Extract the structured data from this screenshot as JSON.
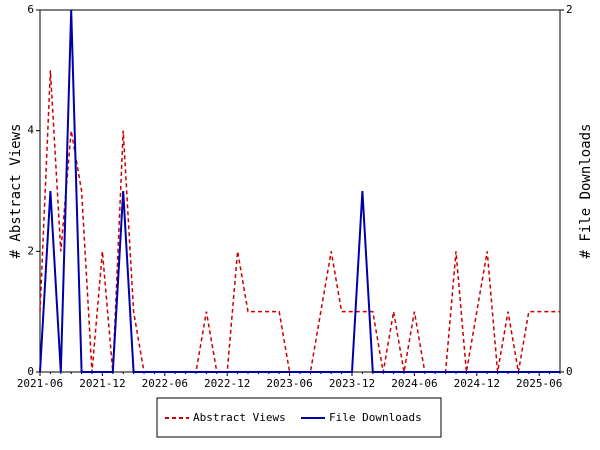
{
  "chart_data": {
    "type": "line",
    "categories": [
      "2021-06",
      null,
      null,
      null,
      null,
      null,
      "2021-12",
      null,
      null,
      null,
      null,
      null,
      "2022-06",
      null,
      null,
      null,
      null,
      null,
      "2022-12",
      null,
      null,
      null,
      null,
      null,
      "2023-06",
      null,
      null,
      null,
      null,
      null,
      "2023-12",
      null,
      null,
      null,
      null,
      null,
      "2024-06",
      null,
      null,
      null,
      null,
      null,
      "2024-12",
      null,
      null,
      null,
      null,
      null,
      "2025-06",
      null,
      null
    ],
    "series": [
      {
        "name": "Abstract Views",
        "color": "#cc0000",
        "dash": true,
        "values": [
          1,
          5,
          2,
          4,
          3,
          0,
          2,
          0,
          4,
          1,
          0,
          0,
          0,
          0,
          0,
          0,
          1,
          0,
          0,
          2,
          1,
          1,
          1,
          1,
          0,
          0,
          0,
          1,
          2,
          1,
          1,
          1,
          1,
          0,
          1,
          0,
          1,
          0,
          0,
          0,
          2,
          0,
          1,
          2,
          0,
          1,
          0,
          1,
          1,
          1,
          1
        ]
      },
      {
        "name": "File Downloads",
        "color": "#0000aa",
        "dash": false,
        "axis": "y2",
        "values": [
          0,
          1,
          0,
          2,
          0,
          0,
          0,
          0,
          1,
          0,
          0,
          0,
          0,
          0,
          0,
          0,
          0,
          0,
          0,
          0,
          0,
          0,
          0,
          0,
          0,
          0,
          0,
          0,
          0,
          0,
          0,
          1,
          0,
          0,
          0,
          0,
          0,
          0,
          0,
          0,
          0,
          0,
          0,
          0,
          0,
          0,
          0,
          0,
          0,
          0,
          0
        ]
      }
    ],
    "ylabel": "# Abstract Views",
    "y2label": "# File Downloads",
    "ylim": [
      0,
      6
    ],
    "yticks": [
      0,
      2,
      4,
      6
    ],
    "y2lim": [
      0,
      2
    ],
    "y2ticks": [
      0,
      2
    ],
    "grid": false,
    "legend": "bottom"
  }
}
